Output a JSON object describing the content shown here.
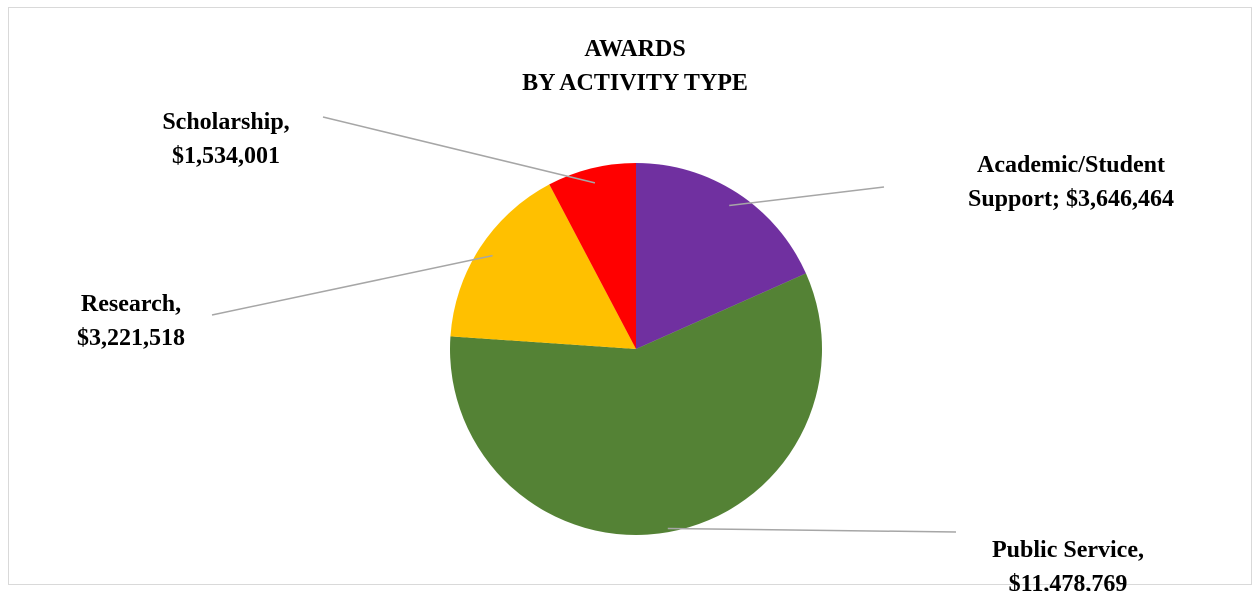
{
  "chart_data": {
    "type": "pie",
    "title": [
      "AWARDS",
      "BY ACTIVITY TYPE"
    ],
    "slices": [
      {
        "name": "Academic/Student Support",
        "value": 3646464,
        "label_lines": [
          "Academic/Student",
          "Support; $3,646,464"
        ],
        "color": "#7030a0"
      },
      {
        "name": "Public Service",
        "value": 11478769,
        "label_lines": [
          "Public Service,",
          "$11,478,769"
        ],
        "color": "#548235"
      },
      {
        "name": "Research",
        "value": 3221518,
        "label_lines": [
          "Research,",
          "$3,221,518"
        ],
        "color": "#ffc000"
      },
      {
        "name": "Scholarship",
        "value": 1534001,
        "label_lines": [
          "Scholarship,",
          "$1,534,001"
        ],
        "color": "#ff0000"
      }
    ],
    "start_angle": "12 o'clock",
    "direction": "clockwise",
    "legend": "none",
    "leader_lines": true
  }
}
